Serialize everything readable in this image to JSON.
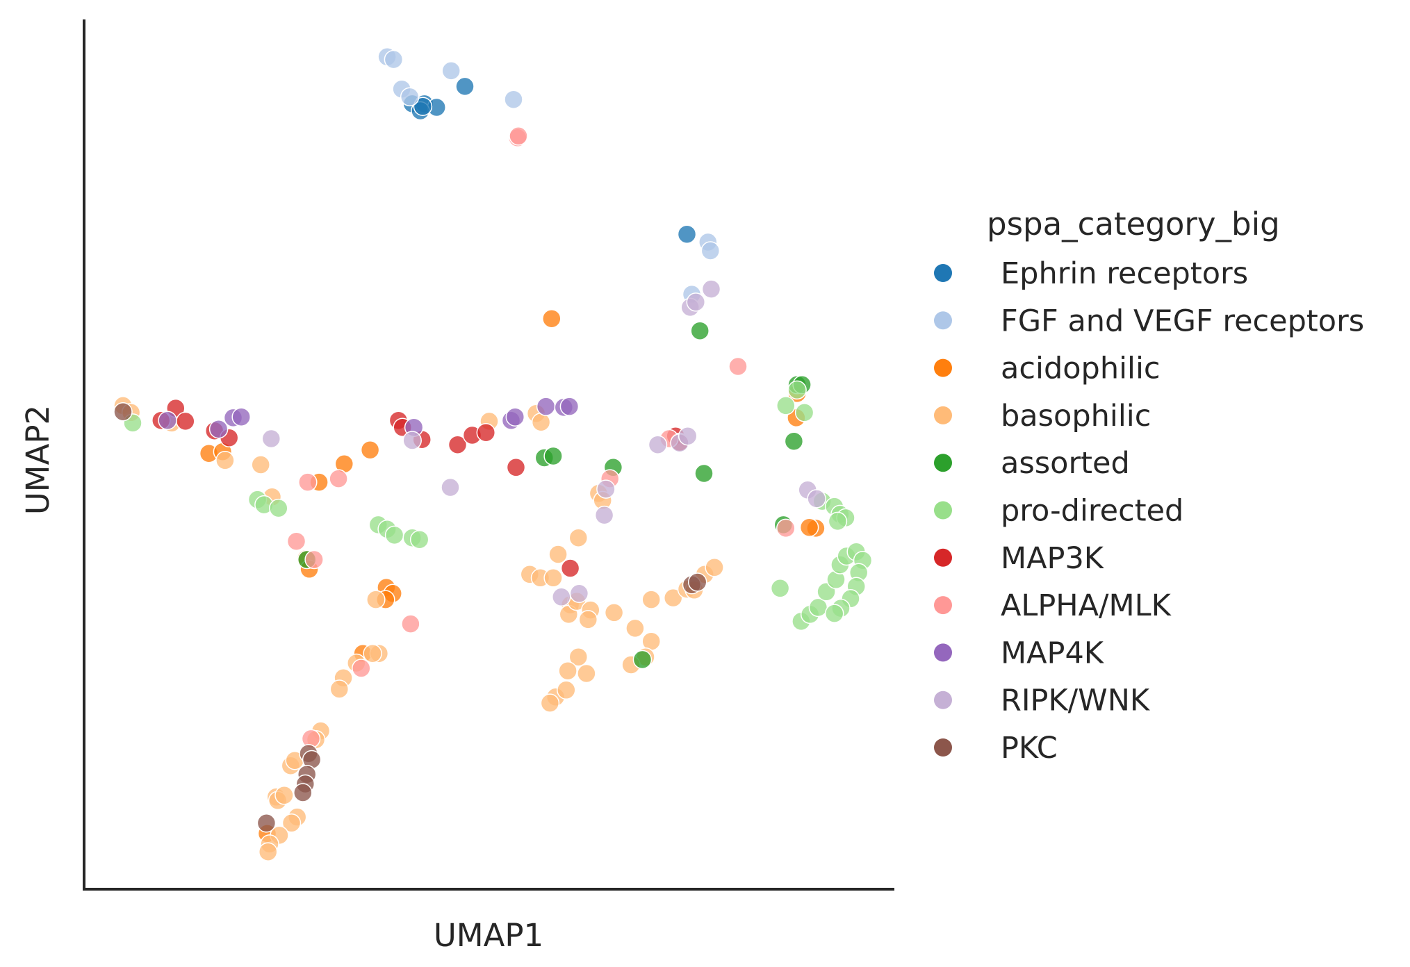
{
  "chart_data": {
    "type": "scatter",
    "title": "",
    "xlabel": "UMAP1",
    "ylabel": "UMAP2",
    "xlim": [
      0,
      100
    ],
    "ylim": [
      0,
      100
    ],
    "grid": false,
    "ticks_visible": false,
    "legend": {
      "title": "pspa_category_big",
      "placement": "outside-right"
    },
    "series": [
      {
        "name": "Ephrin receptors",
        "color": "#1f77b4",
        "points": [
          [
            40.5,
            90.3
          ],
          [
            42,
            90.3
          ],
          [
            43.5,
            89.9
          ],
          [
            41.5,
            89.5
          ],
          [
            47.0,
            92.3
          ],
          [
            74.4,
            75.3
          ],
          [
            41.8,
            90.0
          ]
        ]
      },
      {
        "name": "FGF and VEGF receptors",
        "color": "#aec7e8",
        "points": [
          [
            37.4,
            95.7
          ],
          [
            38.2,
            95.4
          ],
          [
            39.2,
            92.0
          ],
          [
            45.3,
            94.1
          ],
          [
            53.0,
            90.8
          ],
          [
            77.0,
            74.4
          ],
          [
            77.3,
            73.4
          ],
          [
            75.0,
            68.4
          ],
          [
            40.2,
            91.1
          ]
        ]
      },
      {
        "name": "acidophilic",
        "color": "#ff7f0e",
        "points": [
          [
            57.7,
            65.6
          ],
          [
            35.3,
            50.5
          ],
          [
            32.1,
            48.9
          ],
          [
            29.0,
            46.8
          ],
          [
            15.4,
            50.1
          ],
          [
            17.1,
            50.3
          ],
          [
            27.4,
            38.0
          ],
          [
            27.8,
            36.8
          ],
          [
            37.3,
            34.7
          ],
          [
            38.1,
            34.0
          ],
          [
            37.2,
            33.3
          ],
          [
            34.4,
            27.1
          ],
          [
            22.6,
            6.4
          ],
          [
            87.9,
            54.2
          ],
          [
            90.3,
            41.5
          ],
          [
            89.5,
            41.6
          ],
          [
            88.0,
            57.0
          ]
        ]
      },
      {
        "name": "basophilic",
        "color": "#ffbb78",
        "points": [
          [
            4.8,
            55.6
          ],
          [
            5.8,
            54.8
          ],
          [
            10.8,
            53.6
          ],
          [
            17.4,
            49.3
          ],
          [
            21.8,
            48.8
          ],
          [
            23.2,
            45.1
          ],
          [
            50.0,
            53.8
          ],
          [
            55.8,
            54.7
          ],
          [
            56.4,
            53.7
          ],
          [
            63.5,
            45.5
          ],
          [
            64.0,
            44.7
          ],
          [
            61.0,
            40.4
          ],
          [
            58.5,
            38.5
          ],
          [
            55.0,
            36.2
          ],
          [
            56.3,
            35.8
          ],
          [
            57.9,
            35.8
          ],
          [
            60.0,
            32.7
          ],
          [
            59.8,
            31.6
          ],
          [
            60.8,
            33.1
          ],
          [
            62.5,
            32.1
          ],
          [
            62.2,
            31.0
          ],
          [
            65.4,
            31.8
          ],
          [
            70.0,
            33.3
          ],
          [
            72.7,
            33.5
          ],
          [
            74.4,
            34.5
          ],
          [
            75.3,
            34.4
          ],
          [
            76.6,
            36.2
          ],
          [
            77.8,
            37.0
          ],
          [
            68.0,
            30.0
          ],
          [
            70.0,
            28.5
          ],
          [
            69.3,
            26.7
          ],
          [
            67.5,
            25.8
          ],
          [
            61.0,
            26.7
          ],
          [
            62.0,
            24.8
          ],
          [
            59.7,
            25.1
          ],
          [
            58.2,
            22.1
          ],
          [
            57.5,
            21.4
          ],
          [
            59.5,
            22.9
          ],
          [
            36.4,
            27.1
          ],
          [
            35.6,
            27.1
          ],
          [
            33.6,
            26.0
          ],
          [
            32.0,
            24.3
          ],
          [
            31.5,
            23.0
          ],
          [
            29.2,
            18.2
          ],
          [
            28.6,
            17.2
          ],
          [
            25.5,
            14.2
          ],
          [
            26.0,
            14.8
          ],
          [
            23.7,
            10.6
          ],
          [
            23.9,
            10.2
          ],
          [
            24.7,
            10.8
          ],
          [
            26.3,
            8.3
          ],
          [
            25.6,
            7.6
          ],
          [
            24.1,
            6.2
          ],
          [
            22.9,
            5.2
          ],
          [
            22.7,
            4.3
          ],
          [
            36.0,
            33.3
          ]
        ]
      },
      {
        "name": "assorted",
        "color": "#2ca02c",
        "points": [
          [
            88.0,
            58.0
          ],
          [
            88.6,
            58.0
          ],
          [
            87.6,
            51.5
          ],
          [
            56.8,
            49.6
          ],
          [
            57.9,
            49.8
          ],
          [
            65.3,
            48.5
          ],
          [
            76.5,
            47.8
          ],
          [
            76.0,
            64.2
          ],
          [
            86.3,
            41.9
          ],
          [
            27.5,
            37.9
          ],
          [
            68.9,
            26.4
          ]
        ]
      },
      {
        "name": "pro-directed",
        "color": "#98df8a",
        "points": [
          [
            6.0,
            53.6
          ],
          [
            21.4,
            44.8
          ],
          [
            22.2,
            44.2
          ],
          [
            24.0,
            43.8
          ],
          [
            36.3,
            41.9
          ],
          [
            37.4,
            41.4
          ],
          [
            38.3,
            40.7
          ],
          [
            40.5,
            40.4
          ],
          [
            41.4,
            40.2
          ],
          [
            88.0,
            57.4
          ],
          [
            86.6,
            55.6
          ],
          [
            88.9,
            54.8
          ],
          [
            91.1,
            44.6
          ],
          [
            92.6,
            44.0
          ],
          [
            93.3,
            43.1
          ],
          [
            94.0,
            42.7
          ],
          [
            93.0,
            42.3
          ],
          [
            85.9,
            34.6
          ],
          [
            88.5,
            30.8
          ],
          [
            89.6,
            31.6
          ],
          [
            90.6,
            32.4
          ],
          [
            91.6,
            34.2
          ],
          [
            92.8,
            35.6
          ],
          [
            93.3,
            37.3
          ],
          [
            94.1,
            38.3
          ],
          [
            95.3,
            38.8
          ],
          [
            96.1,
            37.8
          ],
          [
            95.6,
            36.4
          ],
          [
            95.3,
            34.8
          ],
          [
            94.6,
            33.4
          ],
          [
            93.4,
            32.3
          ],
          [
            92.6,
            31.7
          ]
        ]
      },
      {
        "name": "MAP3K",
        "color": "#d62728",
        "points": [
          [
            9.5,
            53.9
          ],
          [
            11.3,
            55.3
          ],
          [
            12.5,
            53.8
          ],
          [
            16.1,
            52.7
          ],
          [
            17.9,
            51.9
          ],
          [
            38.8,
            53.9
          ],
          [
            39.3,
            53.1
          ],
          [
            41.7,
            51.7
          ],
          [
            46.1,
            51.1
          ],
          [
            47.9,
            52.2
          ],
          [
            49.6,
            52.5
          ],
          [
            53.3,
            48.5
          ],
          [
            60.0,
            36.9
          ],
          [
            73.0,
            52.1
          ],
          [
            73.5,
            51.4
          ]
        ]
      },
      {
        "name": "ALPHA/MLK",
        "color": "#ff9896",
        "points": [
          [
            53.5,
            86.4
          ],
          [
            53.6,
            86.6
          ],
          [
            27.6,
            46.8
          ],
          [
            31.4,
            47.2
          ],
          [
            26.2,
            40.0
          ],
          [
            28.4,
            37.9
          ],
          [
            40.3,
            30.5
          ],
          [
            34.2,
            25.4
          ],
          [
            28.0,
            17.3
          ],
          [
            64.9,
            47.2
          ],
          [
            80.7,
            60.1
          ],
          [
            72.2,
            51.8
          ],
          [
            86.6,
            41.5
          ]
        ]
      },
      {
        "name": "MAP4K",
        "color": "#9467bd",
        "points": [
          [
            10.3,
            53.9
          ],
          [
            16.6,
            52.9
          ],
          [
            18.4,
            54.2
          ],
          [
            19.4,
            54.3
          ],
          [
            40.7,
            53.1
          ],
          [
            52.7,
            53.9
          ],
          [
            53.2,
            54.3
          ],
          [
            57.0,
            55.5
          ],
          [
            59.2,
            55.4
          ],
          [
            59.9,
            55.5
          ]
        ]
      },
      {
        "name": "RIPK/WNK",
        "color": "#c5b0d5",
        "points": [
          [
            77.4,
            69.0
          ],
          [
            74.8,
            66.9
          ],
          [
            75.5,
            67.5
          ],
          [
            23.1,
            51.8
          ],
          [
            40.5,
            51.6
          ],
          [
            45.2,
            46.2
          ],
          [
            73.5,
            51.3
          ],
          [
            74.5,
            52.1
          ],
          [
            70.8,
            51.1
          ],
          [
            64.4,
            46.0
          ],
          [
            64.2,
            43.0
          ],
          [
            61.1,
            34.0
          ],
          [
            58.9,
            33.6
          ],
          [
            89.3,
            45.9
          ],
          [
            90.4,
            44.9
          ]
        ]
      },
      {
        "name": "PKC",
        "color": "#8c564b",
        "points": [
          [
            4.8,
            54.9
          ],
          [
            75.0,
            35.0
          ],
          [
            75.7,
            35.3
          ],
          [
            27.7,
            15.6
          ],
          [
            28.1,
            14.9
          ],
          [
            27.5,
            13.2
          ],
          [
            27.3,
            12.1
          ],
          [
            27.0,
            11.1
          ],
          [
            22.5,
            7.6
          ]
        ]
      }
    ]
  }
}
